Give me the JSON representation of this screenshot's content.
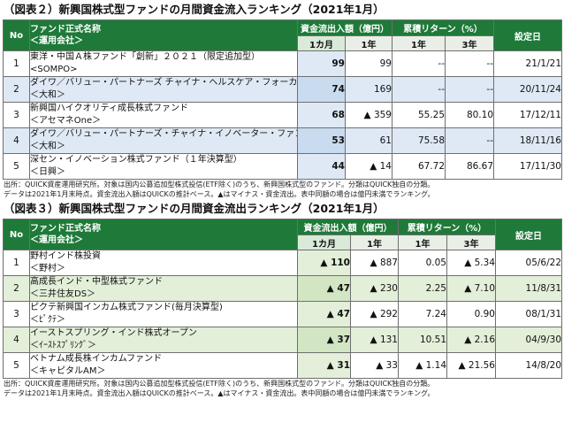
{
  "table_inflow": {
    "title": "（図表２）新興国株式型ファンドの月間資金流入ランキング（2021年1月）",
    "headers": {
      "no": "No",
      "name_line1": "ファンド正式名称",
      "name_line2": "＜運用会社＞",
      "flow": "資金流出入額（億円）",
      "returns": "累積リターン（%）",
      "setup": "設定日",
      "m1": "1カ月",
      "y1": "1年",
      "y1b": "1年",
      "y3": "3年"
    },
    "rows": [
      {
        "no": "1",
        "name": "東洋・中国Ａ株ファンド「創新」２０２１（限定追加型）",
        "company": "<SOMPO>",
        "flow_1m": "99",
        "flow_1y": "99",
        "ret_1y": "--",
        "ret_3y": "--",
        "date": "21/1/21"
      },
      {
        "no": "2",
        "name": "ダイワ／バリュー・パートナーズ チャイナ・ヘルスケア・フォーカス",
        "company": "＜大和＞",
        "flow_1m": "74",
        "flow_1y": "169",
        "ret_1y": "--",
        "ret_3y": "--",
        "date": "20/11/24"
      },
      {
        "no": "3",
        "name": "新興国ハイクオリティ成長株式ファンド",
        "company": "＜アセマネOne＞",
        "flow_1m": "68",
        "flow_1y": "▲ 359",
        "ret_1y": "55.25",
        "ret_3y": "80.10",
        "date": "17/12/11"
      },
      {
        "no": "4",
        "name": "ダイワ／バリュー・パートナーズ・チャイナ・イノベーター・ファンド",
        "company": "＜大和＞",
        "flow_1m": "53",
        "flow_1y": "61",
        "ret_1y": "75.58",
        "ret_3y": "--",
        "date": "18/11/16"
      },
      {
        "no": "5",
        "name": "深セン・イノベーション株式ファンド（１年決算型）",
        "company": "＜日興＞",
        "flow_1m": "44",
        "flow_1y": "▲ 14",
        "ret_1y": "67.72",
        "ret_3y": "86.67",
        "date": "17/11/30"
      }
    ],
    "note1": "出所：QUICK資産運用研究所。対象は国内公募追加型株式投信(ETF除く)のうち、新興国株式型のファンド。分類はQUICK独自の分類。",
    "note2": "データは2021年1月末時点。資金流出入額はQUICKの推計ベース。▲はマイナス・資金流出。表中同額の場合は億円未満でランキング。"
  },
  "table_outflow": {
    "title": "（図表３）新興国株式型ファンドの月間資金流出ランキング（2021年1月）",
    "headers": {
      "no": "No",
      "name_line1": "ファンド正式名称",
      "name_line2": "＜運用会社＞",
      "flow": "資金流出入額（億円）",
      "returns": "累積リターン（%）",
      "setup": "設定日",
      "m1": "1カ月",
      "y1": "1年",
      "y1b": "1年",
      "y3": "3年"
    },
    "rows": [
      {
        "no": "1",
        "name": "野村インド株投資",
        "company": "＜野村＞",
        "flow_1m": "▲ 110",
        "flow_1y": "▲ 887",
        "ret_1y": "0.05",
        "ret_3y": "▲ 5.34",
        "date": "05/6/22"
      },
      {
        "no": "2",
        "name": "高成長インド・中型株式ファンド",
        "company": "＜三井住友DS＞",
        "flow_1m": "▲ 47",
        "flow_1y": "▲ 230",
        "ret_1y": "2.25",
        "ret_3y": "▲ 7.10",
        "date": "11/8/31"
      },
      {
        "no": "3",
        "name": "ピクテ新興国インカム株式ファンド(毎月決算型)",
        "company": "＜ﾋﾟｸﾃ＞",
        "flow_1m": "▲ 47",
        "flow_1y": "▲ 292",
        "ret_1y": "7.24",
        "ret_3y": "0.90",
        "date": "08/1/31"
      },
      {
        "no": "4",
        "name": "イーストスプリング・インド株式オープン",
        "company": "＜ｲｰｽﾄｽﾌﾟﾘﾝｸﾞ＞",
        "flow_1m": "▲ 37",
        "flow_1y": "▲ 131",
        "ret_1y": "10.51",
        "ret_3y": "▲ 2.16",
        "date": "04/9/30"
      },
      {
        "no": "5",
        "name": "ベトナム成長株インカムファンド",
        "company": "＜キャピタルAM＞",
        "flow_1m": "▲ 31",
        "flow_1y": "▲ 33",
        "ret_1y": "▲ 1.14",
        "ret_3y": "▲ 21.56",
        "date": "14/8/20"
      }
    ],
    "note1": "出所：QUICK資産運用研究所。対象は国内公募追加型株式投信(ETF除く)のうち、新興国株式型のファンド。分類はQUICK独自の分類。",
    "note2": "データは2021年1月末時点。資金流出入額はQUICKの推計ベース。▲はマイナス・資金流出。表中同額の場合は億円未満でランキング。"
  }
}
